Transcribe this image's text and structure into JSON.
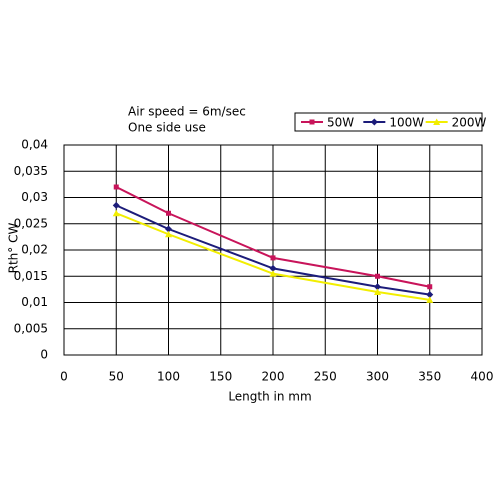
{
  "chart_data": {
    "type": "line",
    "annotations": [
      "Air speed = 6m/sec",
      "One side use"
    ],
    "x_label": "Length in mm",
    "y_label": "Rth° CW",
    "x": [
      50,
      100,
      200,
      300,
      350
    ],
    "series": [
      {
        "name": "50W",
        "color": "#c8145a",
        "marker": "square",
        "values": [
          0.032,
          0.027,
          0.0185,
          0.015,
          0.013
        ]
      },
      {
        "name": "100W",
        "color": "#1c1c7a",
        "marker": "diamond",
        "values": [
          0.0285,
          0.024,
          0.0165,
          0.013,
          0.0115
        ]
      },
      {
        "name": "200W",
        "color": "#f2ee00",
        "marker": "triangle",
        "values": [
          0.027,
          0.023,
          0.0155,
          0.012,
          0.0105
        ]
      }
    ],
    "xlim": [
      0,
      400
    ],
    "xticks": [
      0,
      50,
      100,
      150,
      200,
      250,
      300,
      350,
      400
    ],
    "ylim": [
      0,
      0.04
    ],
    "yticks": [
      0,
      {
        "value": 0.005,
        "label": "0,005"
      },
      {
        "value": 0.01,
        "label": "0,01"
      },
      {
        "value": 0.015,
        "label": "0,015"
      },
      {
        "value": 0.02,
        "label": "0,02"
      },
      {
        "value": 0.025,
        "label": "0,025"
      },
      {
        "value": 0.03,
        "label": "0,03"
      },
      {
        "value": 0.035,
        "label": "0,035"
      },
      {
        "value": 0.04,
        "label": "0,04"
      }
    ],
    "grid": true,
    "legend": "top-right"
  }
}
